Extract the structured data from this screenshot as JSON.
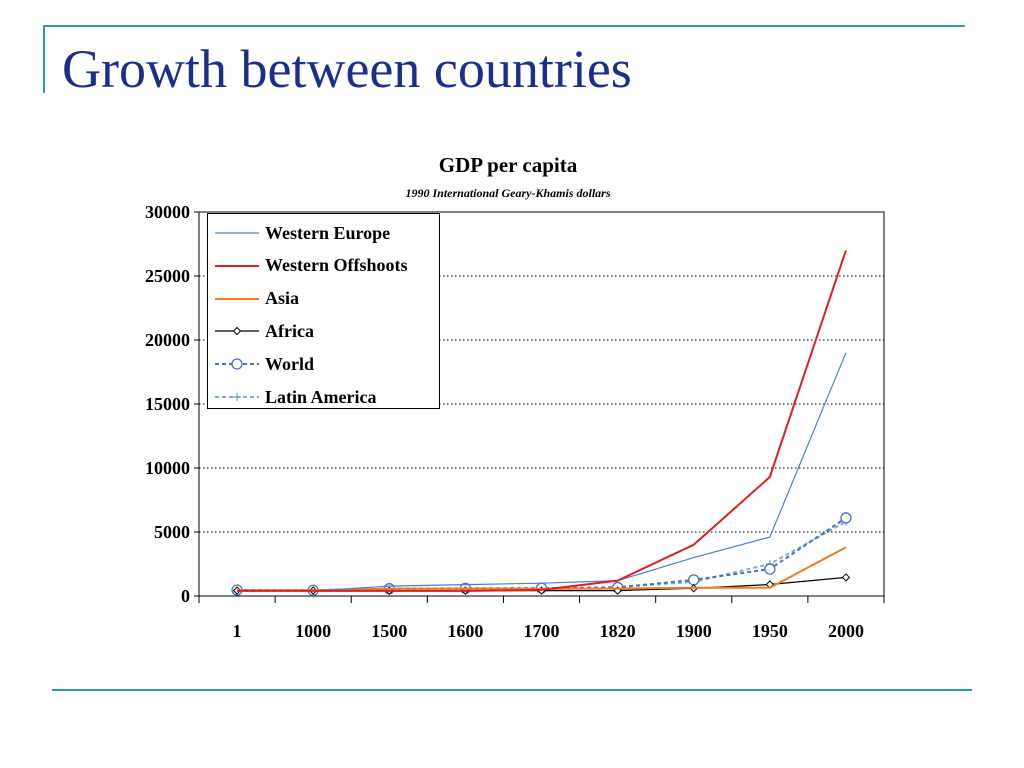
{
  "slide": {
    "title": "Growth between countries"
  },
  "colors": {
    "accent_rule": "#2aa0a0",
    "title_text": "#1a2e8c"
  },
  "chart_data": {
    "type": "line",
    "title": "GDP per capita",
    "subtitle": "1990 International Geary-Khamis dollars",
    "xlabel": "",
    "ylabel": "",
    "categories": [
      "1",
      "1000",
      "1500",
      "1600",
      "1700",
      "1820",
      "1900",
      "1950",
      "2000"
    ],
    "y_ticks": [
      "0",
      "5000",
      "10000",
      "15000",
      "20000",
      "25000",
      "30000"
    ],
    "ylim": [
      0,
      30000
    ],
    "grid": "horizontal dotted",
    "legend_position": "top-left",
    "series": [
      {
        "name": "Western Europe",
        "color": "#4a7fd6",
        "style": "solid-thin",
        "marker": "none",
        "values": [
          450,
          400,
          770,
          890,
          1000,
          1200,
          3000,
          4600,
          19000
        ]
      },
      {
        "name": "Western Offshoots",
        "color": "#dd1f1f",
        "style": "solid",
        "marker": "none",
        "values": [
          400,
          400,
          400,
          400,
          480,
          1200,
          4000,
          9300,
          27000
        ]
      },
      {
        "name": "Asia",
        "color": "#ee7a22",
        "style": "solid",
        "marker": "none",
        "values": [
          450,
          450,
          570,
          580,
          570,
          580,
          640,
          640,
          3800
        ]
      },
      {
        "name": "Africa",
        "color": "#000000",
        "style": "solid-thin",
        "marker": "diamond",
        "values": [
          430,
          430,
          410,
          420,
          420,
          420,
          600,
          900,
          1450
        ]
      },
      {
        "name": "World",
        "color": "#4472c4",
        "style": "dashed",
        "marker": "circle",
        "values": [
          470,
          450,
          570,
          600,
          620,
          670,
          1260,
          2100,
          6100
        ]
      },
      {
        "name": "Latin America",
        "color": "#7bb0c8",
        "style": "dashed",
        "marker": "plus",
        "values": [
          400,
          400,
          420,
          440,
          530,
          700,
          1100,
          2500,
          5800
        ]
      }
    ]
  }
}
